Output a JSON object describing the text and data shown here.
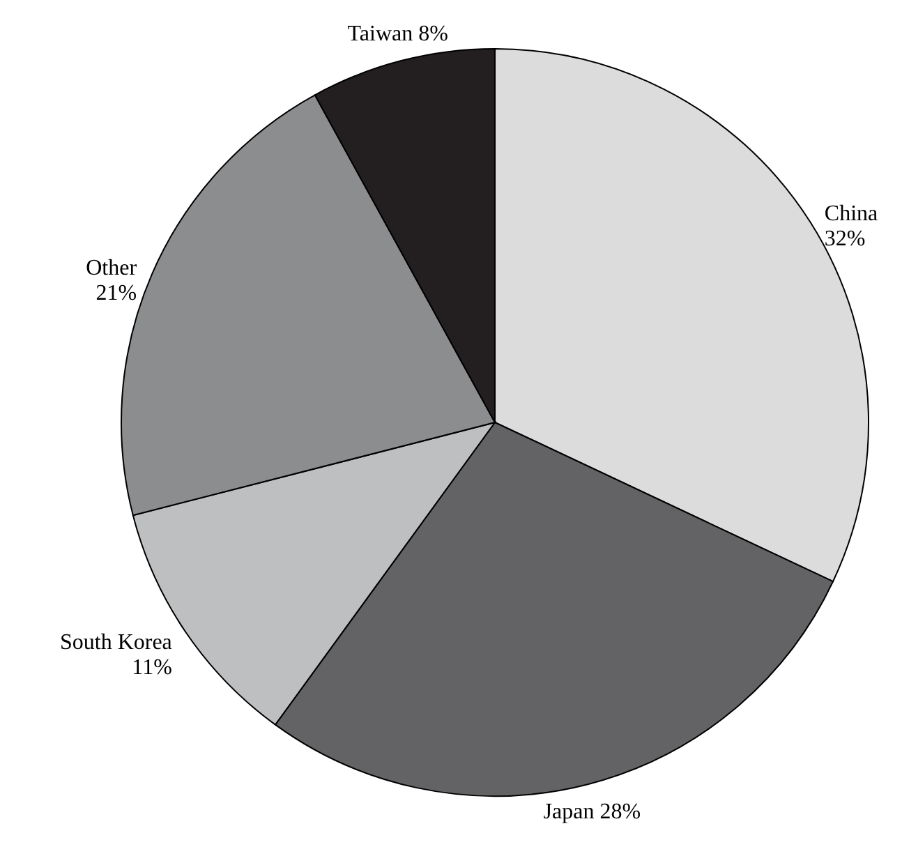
{
  "chart_data": {
    "type": "pie",
    "categories": [
      "China",
      "Japan",
      "South Korea",
      "Other",
      "Taiwan"
    ],
    "values": [
      32,
      28,
      11,
      21,
      8
    ],
    "value_labels": [
      "32%",
      "28%",
      "11%",
      "21%",
      "8%"
    ],
    "colors": [
      "#dcdcdd",
      "#636365",
      "#bebfc1",
      "#8c8d8f",
      "#231f20"
    ]
  }
}
